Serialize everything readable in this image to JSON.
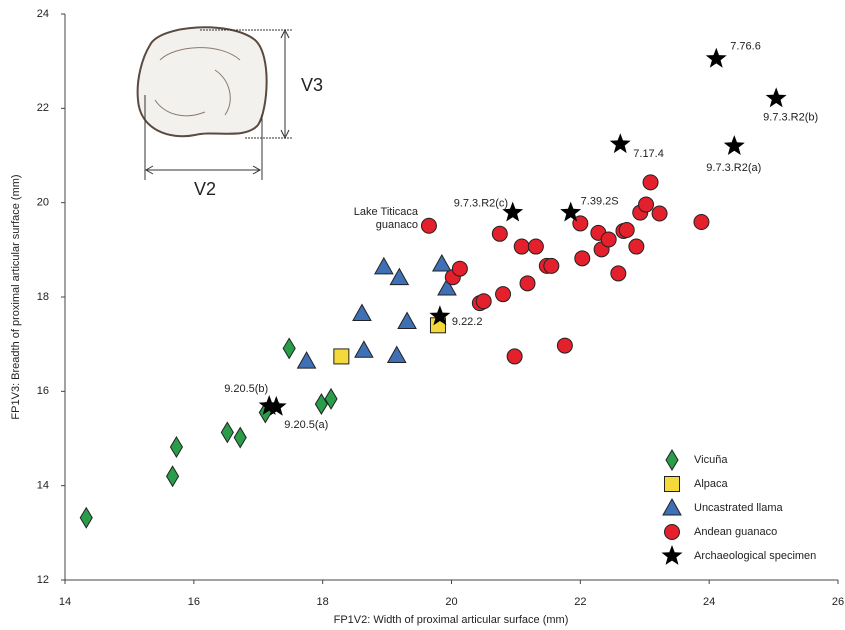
{
  "chart_data": {
    "type": "scatter",
    "x_label": "FP1V2: Width of proximal articular surface (mm)",
    "y_label": "FP1V3: Breadth of proximal articular surface  (mm)",
    "xlim": [
      14,
      26
    ],
    "xticks": [
      14,
      16,
      18,
      20,
      22,
      24,
      26
    ],
    "ylim": [
      12,
      24
    ],
    "yticks": [
      12,
      14,
      16,
      18,
      20,
      22,
      24
    ],
    "legend": "lower right",
    "inset_labels": [
      "V3",
      "V2"
    ],
    "annotation_lines": [
      "Lake Titicaca",
      "guanaco"
    ],
    "series": [
      {
        "name": "Vicuña",
        "marker": "diamond",
        "color": "#2a9d4a",
        "x": [
          14.33,
          15.67,
          15.73,
          16.52,
          16.72,
          17.11,
          17.48,
          17.98,
          18.13
        ],
        "values": [
          13.32,
          14.2,
          14.82,
          15.13,
          15.02,
          15.55,
          16.91,
          15.73,
          15.84
        ]
      },
      {
        "name": "Alpaca",
        "marker": "square",
        "color": "#f5d83a",
        "x": [
          18.29,
          19.79
        ],
        "values": [
          16.74,
          17.4
        ]
      },
      {
        "name": "Uncastrated llama",
        "marker": "triangle",
        "color": "#3f6fb5",
        "x": [
          17.75,
          18.61,
          18.64,
          18.95,
          19.15,
          19.19,
          19.31,
          19.85,
          19.93
        ],
        "values": [
          16.64,
          17.65,
          16.87,
          18.64,
          16.76,
          18.41,
          17.48,
          18.7,
          18.19
        ]
      },
      {
        "name": "Andean guanaco",
        "marker": "circle",
        "color": "#e3202b",
        "x": [
          19.65,
          20.02,
          20.13,
          20.44,
          20.5,
          20.75,
          20.8,
          20.98,
          21.09,
          21.18,
          21.31,
          21.48,
          21.55,
          21.76,
          22.0,
          22.03,
          22.28,
          22.33,
          22.44,
          22.59,
          22.67,
          22.72,
          22.87,
          22.93,
          23.02,
          23.09,
          23.23,
          23.88
        ],
        "values": [
          19.51,
          18.42,
          18.6,
          17.87,
          17.91,
          19.34,
          18.06,
          16.74,
          19.07,
          18.29,
          19.07,
          18.66,
          18.66,
          16.97,
          19.56,
          18.82,
          19.36,
          19.01,
          19.22,
          18.5,
          19.4,
          19.42,
          19.07,
          19.79,
          19.96,
          20.43,
          19.77,
          19.59
        ]
      },
      {
        "name": "Archaeological specimen",
        "marker": "star",
        "color": "#000000",
        "x": [
          24.11,
          25.04,
          24.39,
          22.62,
          21.85,
          20.95,
          19.82,
          17.17,
          17.28
        ],
        "values": [
          23.05,
          22.21,
          21.2,
          21.24,
          19.79,
          19.79,
          17.59,
          15.69,
          15.67
        ],
        "labels": [
          "7.76.6",
          "9.7.3.R2(b)",
          "9.7.3.R2(a)",
          "7.17.4",
          "7.39.2S",
          "9.7.3.R2(c)",
          "9.22.2",
          "9.20.5(b)",
          "9.20.5(a)"
        ]
      }
    ]
  }
}
